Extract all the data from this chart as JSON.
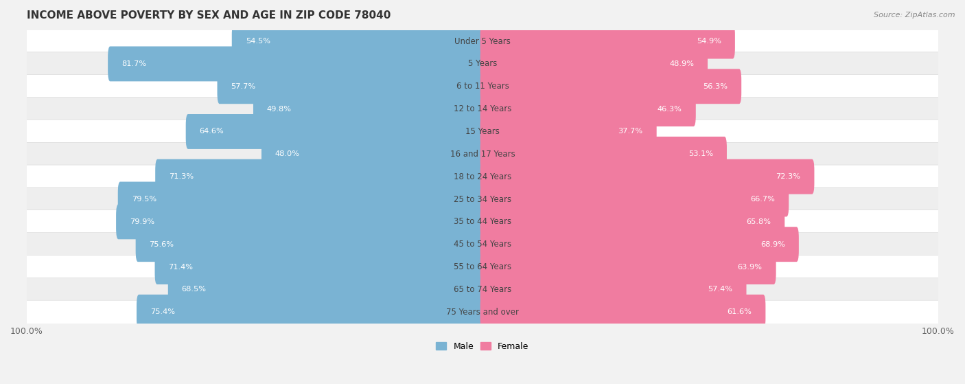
{
  "title": "INCOME ABOVE POVERTY BY SEX AND AGE IN ZIP CODE 78040",
  "source": "Source: ZipAtlas.com",
  "categories": [
    "Under 5 Years",
    "5 Years",
    "6 to 11 Years",
    "12 to 14 Years",
    "15 Years",
    "16 and 17 Years",
    "18 to 24 Years",
    "25 to 34 Years",
    "35 to 44 Years",
    "45 to 54 Years",
    "55 to 64 Years",
    "65 to 74 Years",
    "75 Years and over"
  ],
  "male_values": [
    54.5,
    81.7,
    57.7,
    49.8,
    64.6,
    48.0,
    71.3,
    79.5,
    79.9,
    75.6,
    71.4,
    68.5,
    75.4
  ],
  "female_values": [
    54.9,
    48.9,
    56.3,
    46.3,
    37.7,
    53.1,
    72.3,
    66.7,
    65.8,
    68.9,
    63.9,
    57.4,
    61.6
  ],
  "male_color": "#7ab3d3",
  "female_color": "#f07ca0",
  "male_label_color_inside": "#ffffff",
  "male_label_color_outside": "#888888",
  "female_label_color_inside": "#ffffff",
  "female_label_color_outside": "#888888",
  "male_label": "Male",
  "female_label": "Female",
  "row_bg_odd": "#f5f5f5",
  "row_bg_even": "#e8e8e8",
  "title_fontsize": 11,
  "label_fontsize": 8.5,
  "axis_max": 100.0,
  "inside_threshold": 15
}
